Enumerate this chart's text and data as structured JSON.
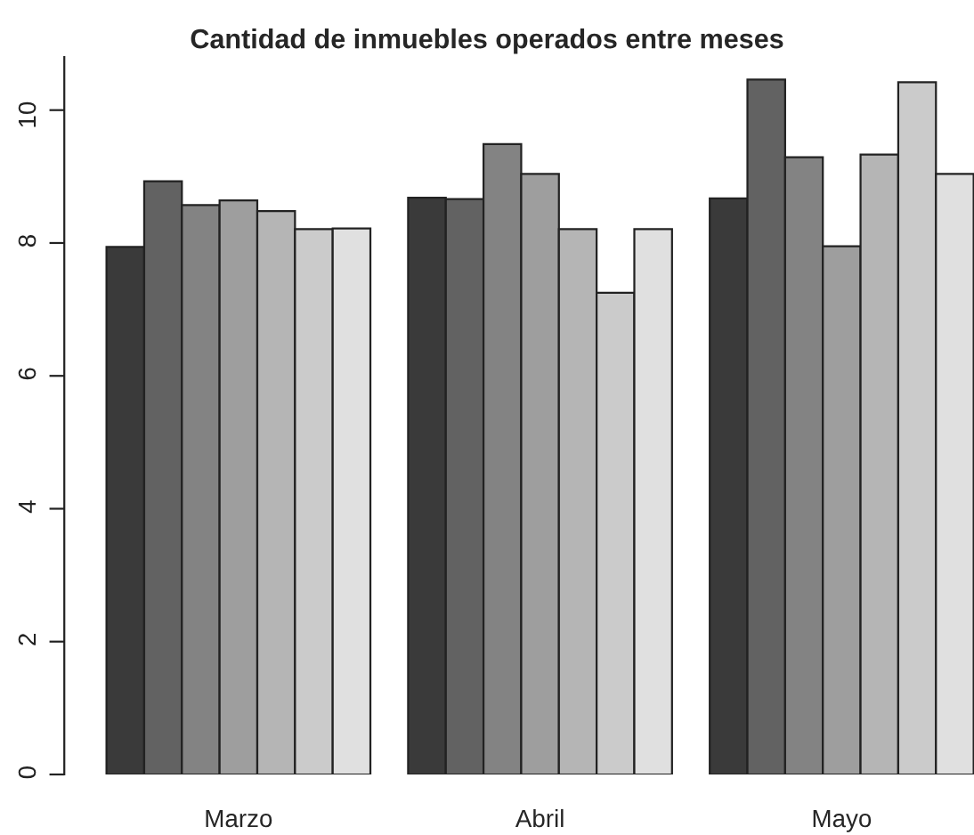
{
  "chart_data": {
    "type": "bar",
    "title": "Cantidad de inmuebles operados entre meses",
    "categories": [
      "Marzo",
      "Abril",
      "Mayo"
    ],
    "series": [
      {
        "color": "#3a3a3a",
        "values": [
          7.94,
          8.68,
          8.67
        ]
      },
      {
        "color": "#626262",
        "values": [
          8.93,
          8.66,
          10.46
        ]
      },
      {
        "color": "#838383",
        "values": [
          8.57,
          9.49,
          9.29
        ]
      },
      {
        "color": "#9e9e9e",
        "values": [
          8.64,
          9.04,
          7.95
        ]
      },
      {
        "color": "#b5b5b5",
        "values": [
          8.48,
          8.21,
          9.33
        ]
      },
      {
        "color": "#cbcbcb",
        "values": [
          8.21,
          7.25,
          10.42
        ]
      },
      {
        "color": "#e0e0e0",
        "values": [
          8.22,
          8.21,
          9.04
        ]
      }
    ],
    "ylim": [
      0,
      10.8
    ],
    "yticks": [
      0,
      2,
      4,
      6,
      8,
      10
    ],
    "grid": false,
    "legend": false
  }
}
